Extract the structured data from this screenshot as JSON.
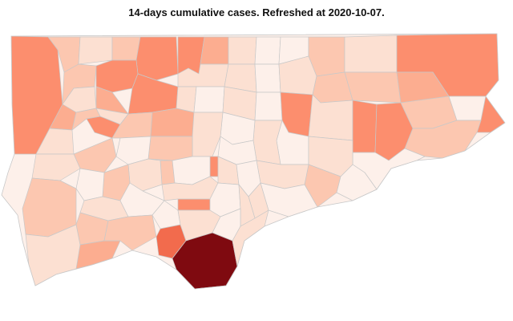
{
  "title": "14-days cumulative cases. Refreshed at 2020-10-07.",
  "colors": {
    "background": "#ffffff",
    "border": "#c8c8c8",
    "scale": [
      "#fdf0ea",
      "#fce0d2",
      "#fcc7b0",
      "#fcad90",
      "#fc8e6e",
      "#f26b4d",
      "#d9301f",
      "#7f0a10"
    ]
  }
}
